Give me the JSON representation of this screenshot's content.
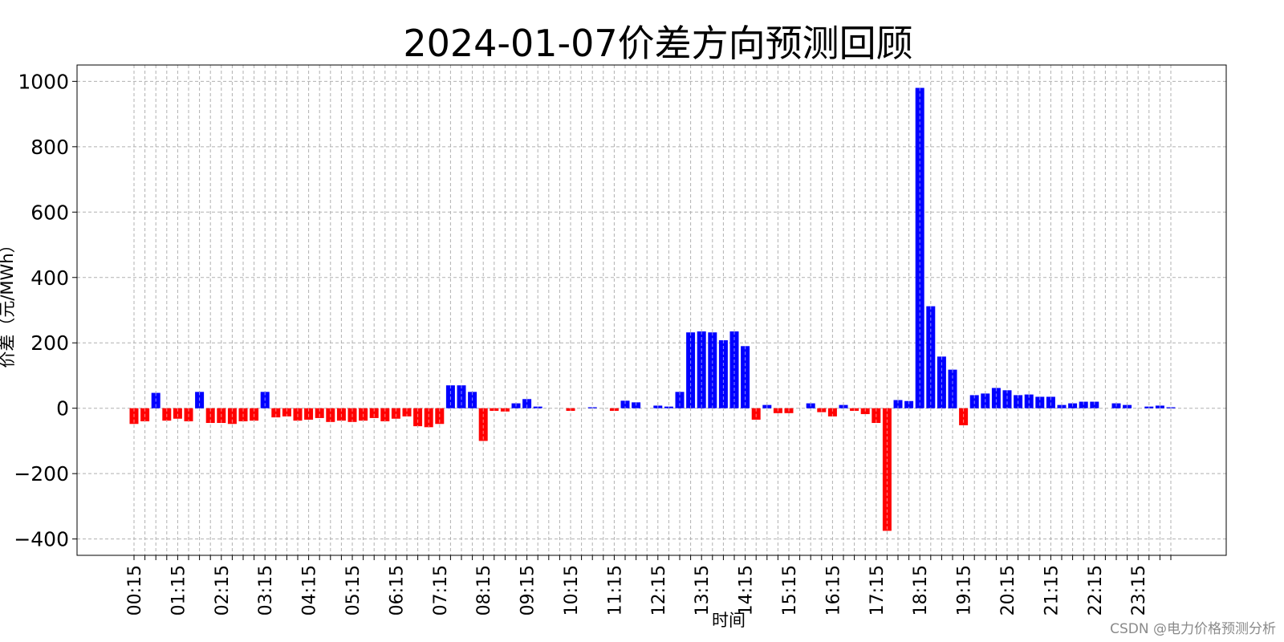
{
  "chart_data": {
    "type": "bar",
    "title": "2024-01-07价差方向预测回顾",
    "xlabel": "时间",
    "ylabel": "价差（元/MWh）",
    "ylim": [
      -450,
      1050
    ],
    "yticks": [
      -400,
      -200,
      0,
      200,
      400,
      600,
      800,
      1000
    ],
    "ytick_labels": [
      "−400",
      "−200",
      "0",
      "200",
      "400",
      "600",
      "800",
      "1000"
    ],
    "xtick_labels": [
      "00:15",
      "01:15",
      "02:15",
      "03:15",
      "04:15",
      "05:15",
      "06:15",
      "07:15",
      "08:15",
      "09:15",
      "10:15",
      "11:15",
      "12:15",
      "13:15",
      "14:15",
      "15:15",
      "16:15",
      "17:15",
      "18:15",
      "19:15",
      "20:15",
      "21:15",
      "22:15",
      "23:15"
    ],
    "grid": true,
    "colors": {
      "positive": "#0000ff",
      "negative": "#ff0000",
      "grid": "#b0b0b0"
    },
    "categories": [
      "00:15",
      "00:30",
      "00:45",
      "01:00",
      "01:15",
      "01:30",
      "01:45",
      "02:00",
      "02:15",
      "02:30",
      "02:45",
      "03:00",
      "03:15",
      "03:30",
      "03:45",
      "04:00",
      "04:15",
      "04:30",
      "04:45",
      "05:00",
      "05:15",
      "05:30",
      "05:45",
      "06:00",
      "06:15",
      "06:30",
      "06:45",
      "07:00",
      "07:15",
      "07:30",
      "07:45",
      "08:00",
      "08:15",
      "08:30",
      "08:45",
      "09:00",
      "09:15",
      "09:30",
      "09:45",
      "10:00",
      "10:15",
      "10:30",
      "10:45",
      "11:00",
      "11:15",
      "11:30",
      "11:45",
      "12:00",
      "12:15",
      "12:30",
      "12:45",
      "13:00",
      "13:15",
      "13:30",
      "13:45",
      "14:00",
      "14:15",
      "14:30",
      "14:45",
      "15:00",
      "15:15",
      "15:30",
      "15:45",
      "16:00",
      "16:15",
      "16:30",
      "16:45",
      "17:00",
      "17:15",
      "17:30",
      "17:45",
      "18:00",
      "18:15",
      "18:30",
      "18:45",
      "19:00",
      "19:15",
      "19:30",
      "19:45",
      "20:00",
      "20:15",
      "20:30",
      "20:45",
      "21:00",
      "21:15",
      "21:30",
      "21:45",
      "22:00",
      "22:15",
      "22:30",
      "22:45",
      "23:00",
      "23:15",
      "23:30",
      "23:45",
      "24:00"
    ],
    "values": [
      -48,
      -40,
      47,
      -38,
      -32,
      -40,
      50,
      -45,
      -45,
      -48,
      -40,
      -38,
      50,
      -28,
      -25,
      -38,
      -35,
      -30,
      -42,
      -38,
      -42,
      -38,
      -30,
      -40,
      -32,
      -25,
      -55,
      -58,
      -48,
      70,
      70,
      50,
      -100,
      -8,
      -10,
      15,
      28,
      5,
      0,
      0,
      -8,
      0,
      3,
      0,
      -8,
      23,
      18,
      0,
      8,
      5,
      50,
      232,
      235,
      232,
      208,
      235,
      190,
      -35,
      10,
      -15,
      -15,
      0,
      15,
      -12,
      -25,
      10,
      -8,
      -18,
      -45,
      -375,
      25,
      22,
      980,
      312,
      158,
      118,
      -52,
      40,
      45,
      62,
      55,
      40,
      42,
      35,
      35,
      10,
      15,
      20,
      20,
      0,
      15,
      10,
      0,
      5,
      8,
      3
    ],
    "watermark": "CSDN @电力价格预测分析"
  }
}
